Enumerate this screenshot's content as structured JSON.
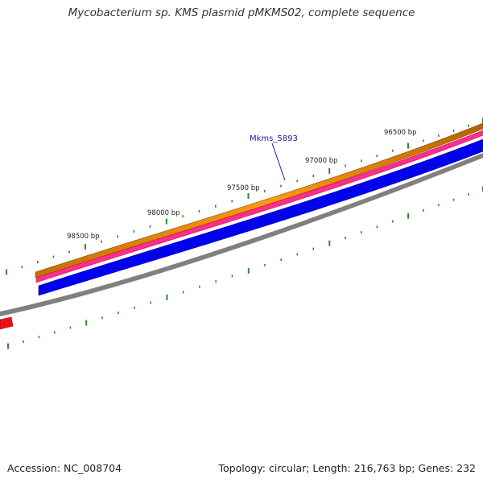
{
  "title": "Mycobacterium sp. KMS plasmid pMKMS02, complete sequence",
  "footer": {
    "accession": "Accession: NC_008704",
    "stats": "Topology: circular; Length: 216,763 bp; Genes: 232"
  },
  "ruler": {
    "labels": [
      "96500 bp",
      "97000 bp",
      "97500 bp",
      "98000 bp",
      "98500 bp"
    ]
  },
  "gene_label": "Mkms_5893",
  "colors": {
    "orange_track": "#f08c00",
    "pink_track": "#ff2d8c",
    "blue_track": "#0000ee",
    "backbone": "#808080",
    "red_feature": "#ee1111",
    "tick": "#2e8b2e",
    "gene_label": "#1a1aa0"
  }
}
